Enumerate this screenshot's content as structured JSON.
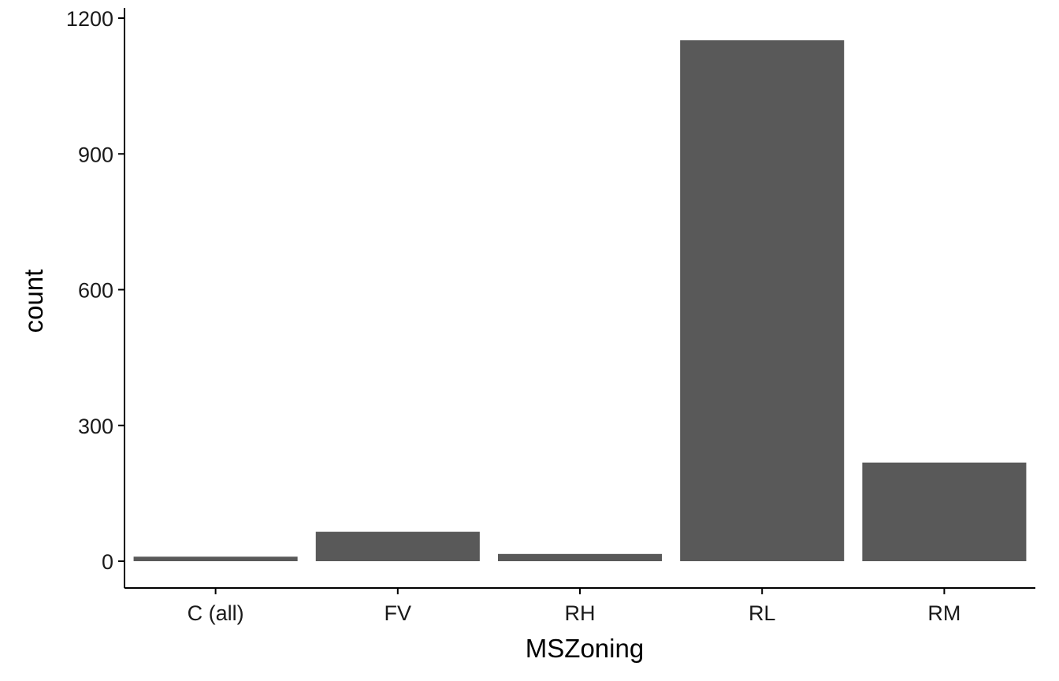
{
  "chart_data": {
    "type": "bar",
    "title": "",
    "xlabel": "MSZoning",
    "ylabel": "count",
    "categories": [
      "C (all)",
      "FV",
      "RH",
      "RL",
      "RM"
    ],
    "values": [
      10,
      65,
      16,
      1151,
      218
    ],
    "ylim": [
      -56,
      1200
    ],
    "yticks": [
      0,
      300,
      600,
      900,
      1200
    ],
    "grid": false,
    "legend": "none",
    "bar_color": "#595959"
  }
}
